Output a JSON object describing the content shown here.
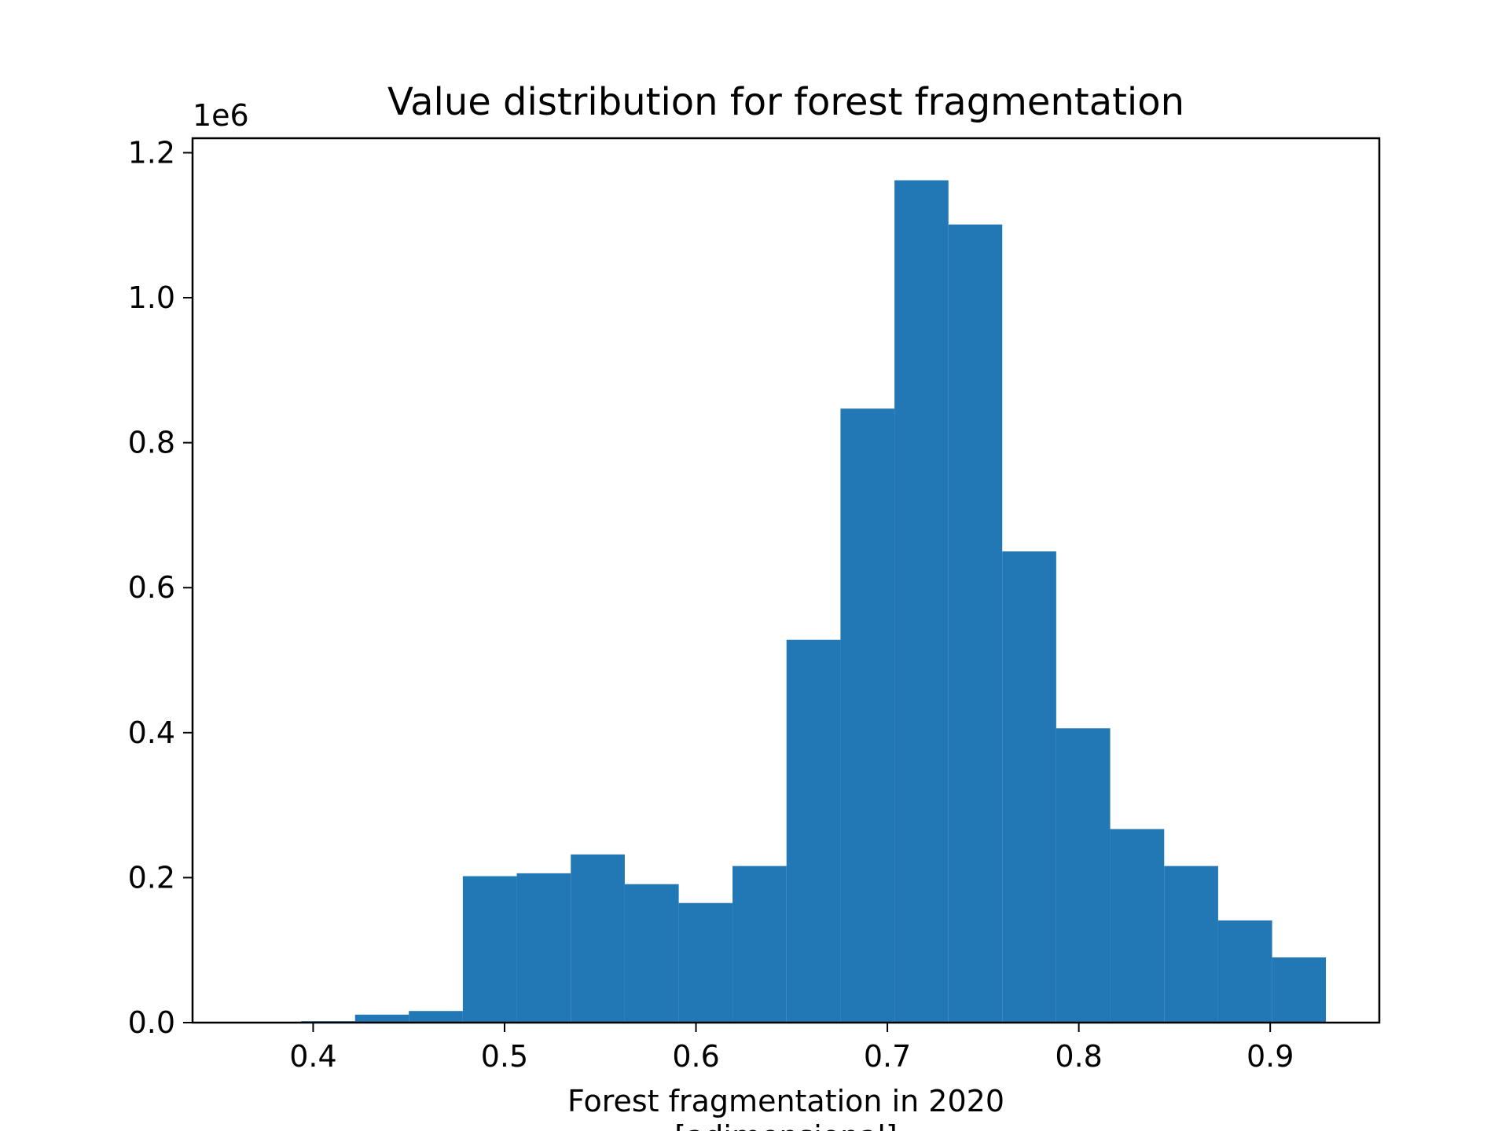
{
  "chart_data": {
    "type": "histogram",
    "title": "Value distribution for forest fragmentation",
    "xlabel_line1": "Forest fragmentation in 2020",
    "xlabel_line2": "[adimensional]",
    "ylabel": "",
    "y_offset_label": "1e6",
    "xlim": [
      0.337,
      0.957
    ],
    "ylim": [
      0,
      1.22
    ],
    "x_ticks": [
      0.4,
      0.5,
      0.6,
      0.7,
      0.8,
      0.9
    ],
    "x_tick_labels": [
      "0.4",
      "0.5",
      "0.6",
      "0.7",
      "0.8",
      "0.9"
    ],
    "y_ticks": [
      0.0,
      0.2,
      0.4,
      0.6,
      0.8,
      1.0,
      1.2
    ],
    "y_tick_labels": [
      "0.0",
      "0.2",
      "0.4",
      "0.6",
      "0.8",
      "1.0",
      "1.2"
    ],
    "bar_color": "#2178b4",
    "grid": false,
    "bins": [
      {
        "x0": 0.3655,
        "x1": 0.3937,
        "value": 0.0
      },
      {
        "x0": 0.3937,
        "x1": 0.4219,
        "value": 0.002
      },
      {
        "x0": 0.4219,
        "x1": 0.45,
        "value": 0.011
      },
      {
        "x0": 0.45,
        "x1": 0.4782,
        "value": 0.016
      },
      {
        "x0": 0.4782,
        "x1": 0.5064,
        "value": 0.202
      },
      {
        "x0": 0.5064,
        "x1": 0.5346,
        "value": 0.206
      },
      {
        "x0": 0.5346,
        "x1": 0.5628,
        "value": 0.232
      },
      {
        "x0": 0.5628,
        "x1": 0.591,
        "value": 0.191
      },
      {
        "x0": 0.591,
        "x1": 0.6191,
        "value": 0.165
      },
      {
        "x0": 0.6191,
        "x1": 0.6473,
        "value": 0.216
      },
      {
        "x0": 0.6473,
        "x1": 0.6755,
        "value": 0.528
      },
      {
        "x0": 0.6755,
        "x1": 0.7037,
        "value": 0.847
      },
      {
        "x0": 0.7037,
        "x1": 0.7319,
        "value": 1.162
      },
      {
        "x0": 0.7319,
        "x1": 0.76,
        "value": 1.101
      },
      {
        "x0": 0.76,
        "x1": 0.7882,
        "value": 0.65
      },
      {
        "x0": 0.7882,
        "x1": 0.8164,
        "value": 0.406
      },
      {
        "x0": 0.8164,
        "x1": 0.8446,
        "value": 0.267
      },
      {
        "x0": 0.8446,
        "x1": 0.8728,
        "value": 0.216
      },
      {
        "x0": 0.8728,
        "x1": 0.901,
        "value": 0.141
      },
      {
        "x0": 0.901,
        "x1": 0.9291,
        "value": 0.09
      }
    ]
  }
}
